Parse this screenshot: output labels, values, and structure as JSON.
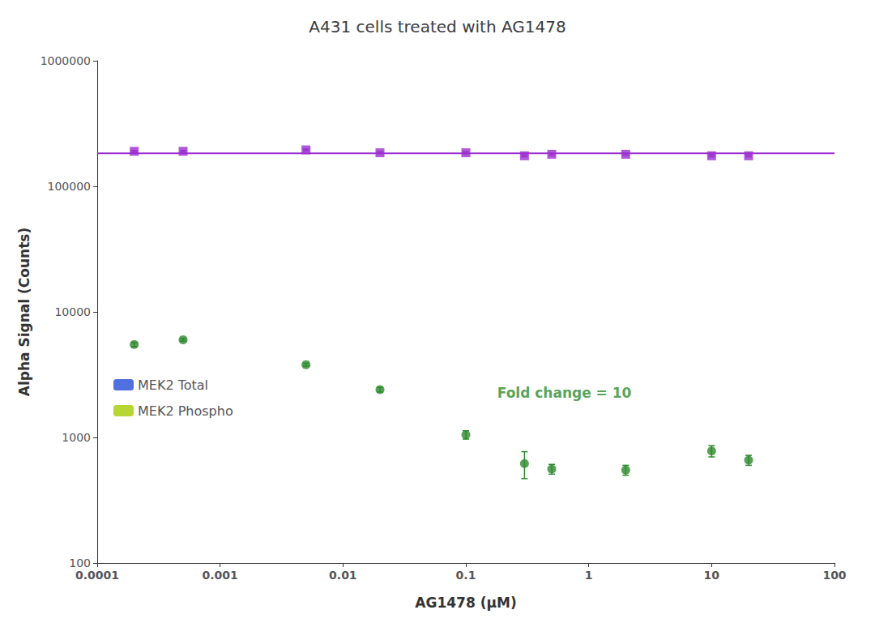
{
  "chart_data": {
    "type": "scatter",
    "title": "A431 cells treated with AG1478",
    "xlabel": "AG1478 (μM)",
    "ylabel": "Alpha Signal (Counts)",
    "log": true,
    "xlim": [
      0.0001,
      100
    ],
    "ylim": [
      100,
      1000000
    ],
    "xticks": [
      0.0001,
      0.001,
      0.01,
      0.1,
      1,
      10,
      100
    ],
    "yticks": [
      100,
      1000,
      10000,
      100000,
      1000000
    ],
    "grid": false,
    "legend": "lower left",
    "series": [
      {
        "name": "MEK2 Total",
        "color": "#9b30d0",
        "marker": "square",
        "x": [
          0.0002,
          0.0005,
          0.005,
          0.02,
          0.1,
          0.3,
          0.5,
          2.0,
          10.0,
          20.0
        ],
        "values": [
          190000,
          190000,
          195000,
          185000,
          185000,
          175000,
          180000,
          180000,
          175000,
          175000
        ],
        "yerr": [
          3000,
          3000,
          3000,
          3000,
          3000,
          3000,
          3000,
          3000,
          3000,
          3000
        ]
      },
      {
        "name": "MEK2 Phospho",
        "color": "#2d8a2d",
        "marker": "circle",
        "x": [
          0.0002,
          0.0005,
          0.005,
          0.02,
          0.1,
          0.3,
          0.5,
          2.0,
          10.0,
          20.0
        ],
        "values": [
          5500,
          6000,
          3800,
          2400,
          1050,
          620,
          560,
          550,
          780,
          660
        ],
        "yerr": [
          200,
          150,
          100,
          100,
          80,
          150,
          50,
          50,
          80,
          60
        ]
      },
      {
        "type": "line",
        "color": "#9b30d0",
        "line_style": "solid",
        "x": [
          0.0001,
          100
        ],
        "values": [
          183000,
          183000
        ]
      }
    ],
    "annotations": [
      {
        "text": "Fold change = 10",
        "x": 0.18,
        "y": 2000,
        "color": "#2d8a2d"
      }
    ]
  }
}
